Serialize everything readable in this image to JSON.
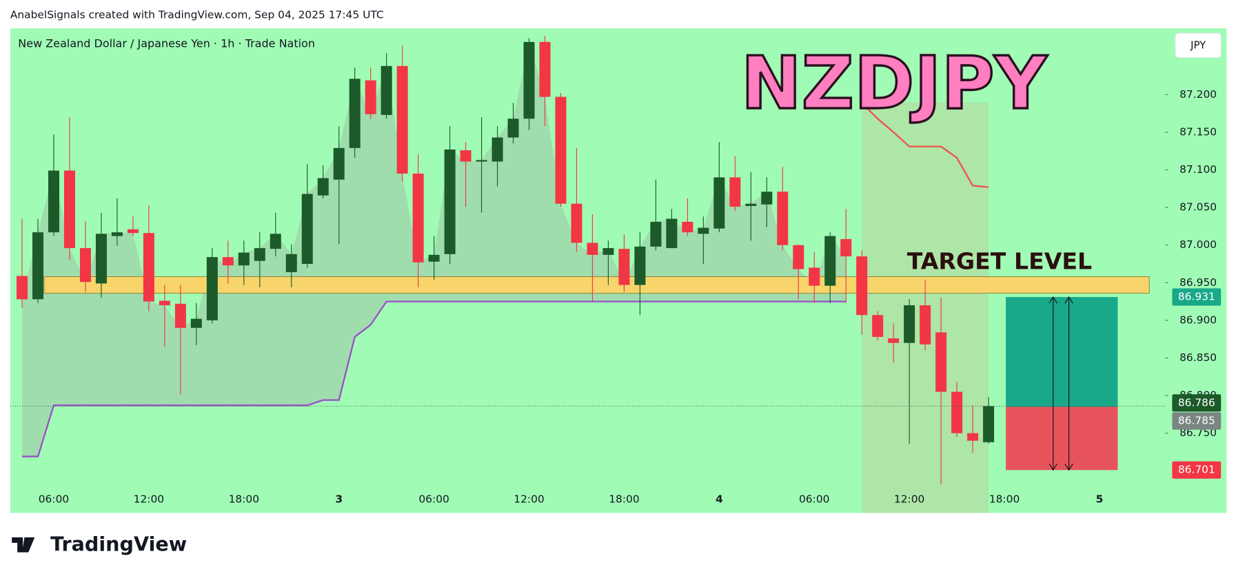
{
  "header": {
    "attribution": "AnabelSignals created with TradingView.com, Sep 04, 2025 17:45 UTC"
  },
  "footer": {
    "brand": "TradingView"
  },
  "chart_data": {
    "type": "candlestick",
    "legend": "New Zealand Dollar / Japanese Yen · 1h · Trade Nation",
    "symbol_art": "NZDJPY",
    "target_label": "TARGET LEVEL",
    "currency": "JPY",
    "up_color": "#1c5a2a",
    "down_color": "#f23645",
    "background": "#a0fcb4",
    "categories": [
      null,
      null,
      "06:00",
      null,
      null,
      null,
      null,
      null,
      "12:00",
      null,
      null,
      null,
      null,
      null,
      "18:00",
      null,
      null,
      null,
      null,
      null,
      "3",
      null,
      null,
      null,
      null,
      null,
      "06:00",
      null,
      null,
      null,
      null,
      null,
      "12:00",
      null,
      null,
      null,
      null,
      null,
      "18:00",
      null,
      null,
      null,
      null,
      null,
      "4",
      null,
      null,
      null,
      null,
      null,
      "06:00",
      null,
      null,
      null,
      null,
      null,
      "12:00",
      null,
      null,
      null,
      null,
      null,
      "18:00",
      null,
      null,
      null,
      null,
      null,
      "5"
    ],
    "open": [
      86.959,
      86.928,
      87.017,
      87.099,
      86.996,
      86.949,
      87.012,
      87.021,
      87.016,
      86.926,
      86.922,
      86.89,
      86.9,
      86.984,
      86.973,
      86.979,
      86.995,
      86.964,
      86.975,
      87.066,
      87.087,
      87.129,
      87.219,
      87.173,
      87.238,
      87.095,
      86.978,
      86.988,
      87.126,
      87.111,
      87.111,
      87.143,
      87.168,
      87.27,
      87.197,
      87.055,
      87.003,
      86.987,
      86.995,
      86.947,
      86.998,
      86.996,
      87.031,
      87.015,
      87.022,
      87.09,
      87.052,
      87.054,
      87.071,
      87.0,
      86.97,
      86.946,
      87.008,
      86.985,
      86.907,
      86.876,
      86.87,
      86.92,
      86.884,
      86.805,
      86.75,
      86.738,
      null,
      null,
      null,
      null,
      null,
      null,
      null
    ],
    "high": [
      87.035,
      87.035,
      87.147,
      87.17,
      87.032,
      87.043,
      87.062,
      87.038,
      87.053,
      86.947,
      86.947,
      86.923,
      86.996,
      87.006,
      87.006,
      87.017,
      87.043,
      87.001,
      87.108,
      87.106,
      87.158,
      87.236,
      87.236,
      87.255,
      87.265,
      87.121,
      87.012,
      87.158,
      87.137,
      87.17,
      87.158,
      87.189,
      87.275,
      87.278,
      87.202,
      87.129,
      87.041,
      87.006,
      87.014,
      87.017,
      87.087,
      87.048,
      87.062,
      87.038,
      87.137,
      87.118,
      87.097,
      87.09,
      87.104,
      87.001,
      86.991,
      87.017,
      87.048,
      86.993,
      86.912,
      86.896,
      86.928,
      86.954,
      86.93,
      86.818,
      86.787,
      86.798,
      null,
      null,
      null,
      null,
      null,
      null,
      null
    ],
    "low": [
      86.917,
      86.923,
      87.012,
      86.98,
      86.938,
      86.93,
      86.999,
      87.012,
      86.912,
      86.865,
      86.802,
      86.867,
      86.896,
      86.949,
      86.947,
      86.944,
      86.985,
      86.944,
      86.97,
      87.062,
      87.001,
      87.116,
      87.168,
      87.168,
      87.085,
      86.944,
      86.954,
      86.975,
      87.051,
      87.043,
      87.078,
      87.135,
      87.153,
      87.158,
      87.051,
      86.991,
      86.926,
      86.947,
      86.938,
      86.907,
      86.993,
      86.996,
      87.012,
      86.975,
      87.017,
      87.045,
      87.006,
      87.024,
      86.993,
      86.928,
      86.923,
      86.923,
      86.923,
      86.881,
      86.873,
      86.844,
      86.736,
      86.86,
      86.682,
      86.745,
      86.724,
      86.736,
      null,
      null,
      null,
      null,
      null,
      null,
      null
    ],
    "close": [
      86.928,
      87.017,
      87.099,
      86.996,
      86.951,
      87.015,
      87.017,
      87.016,
      86.925,
      86.92,
      86.89,
      86.902,
      86.984,
      86.973,
      86.99,
      86.996,
      87.015,
      86.988,
      87.068,
      87.089,
      87.129,
      87.221,
      87.174,
      87.238,
      87.095,
      86.977,
      86.987,
      87.127,
      87.111,
      87.113,
      87.143,
      87.168,
      87.27,
      87.197,
      87.055,
      87.003,
      86.987,
      86.996,
      86.947,
      86.998,
      87.031,
      87.035,
      87.017,
      87.023,
      87.09,
      87.051,
      87.055,
      87.071,
      87.0,
      86.968,
      86.946,
      87.012,
      86.985,
      86.907,
      86.878,
      86.87,
      86.92,
      86.868,
      86.805,
      86.75,
      86.74,
      86.786,
      null,
      null,
      null,
      null,
      null,
      null,
      null
    ],
    "lines": [
      {
        "color": "#9b4dca",
        "values": [
          86.719,
          86.719,
          86.787,
          86.787,
          86.787,
          86.787,
          86.787,
          86.787,
          86.787,
          86.787,
          86.787,
          86.787,
          86.787,
          86.787,
          86.787,
          86.787,
          86.787,
          86.787,
          86.787,
          86.794,
          86.794,
          86.878,
          86.894,
          86.925,
          86.925,
          86.925,
          86.925,
          86.925,
          86.925,
          86.925,
          86.925,
          86.925,
          86.925,
          86.925,
          86.925,
          86.925,
          86.925,
          86.925,
          86.925,
          86.925,
          86.925,
          86.925,
          86.925,
          86.925,
          86.925,
          86.925,
          86.925,
          86.925,
          86.925,
          86.925,
          86.925,
          86.925,
          86.925,
          null,
          null,
          null,
          null,
          null,
          null,
          null,
          null,
          null,
          null,
          null,
          null,
          null,
          null,
          null,
          null
        ]
      },
      {
        "color": "#f0504a",
        "values": [
          null,
          null,
          null,
          null,
          null,
          null,
          null,
          null,
          null,
          null,
          null,
          null,
          null,
          null,
          null,
          null,
          null,
          null,
          null,
          null,
          null,
          null,
          null,
          null,
          null,
          null,
          null,
          null,
          null,
          null,
          null,
          null,
          null,
          null,
          null,
          null,
          null,
          null,
          null,
          null,
          null,
          null,
          null,
          null,
          null,
          null,
          null,
          null,
          null,
          null,
          null,
          null,
          null,
          87.189,
          87.168,
          87.15,
          87.131,
          87.131,
          87.131,
          87.116,
          87.079,
          87.077,
          null,
          null,
          null,
          null,
          null,
          null,
          null
        ]
      }
    ],
    "zone": {
      "low": 86.936,
      "high": 86.958,
      "color": "#f7d56b"
    },
    "position": {
      "target": 86.931,
      "entry": 86.785,
      "stop": 86.701,
      "profit_color": "#1aa88a",
      "loss_color": "#e8545c"
    },
    "ylim": [
      86.644,
      87.288
    ],
    "yticks": [
      {
        "value": 87.2,
        "label": "87.200"
      },
      {
        "value": 87.15,
        "label": "87.150"
      },
      {
        "value": 87.1,
        "label": "87.100"
      },
      {
        "value": 87.05,
        "label": "87.050"
      },
      {
        "value": 87,
        "label": "87.000"
      },
      {
        "value": 86.95,
        "label": "86.950"
      },
      {
        "value": 86.9,
        "label": "86.900"
      },
      {
        "value": 86.85,
        "label": "86.850"
      },
      {
        "value": 86.8,
        "label": "86.800"
      },
      {
        "value": 86.75,
        "label": "86.750"
      }
    ]
  }
}
